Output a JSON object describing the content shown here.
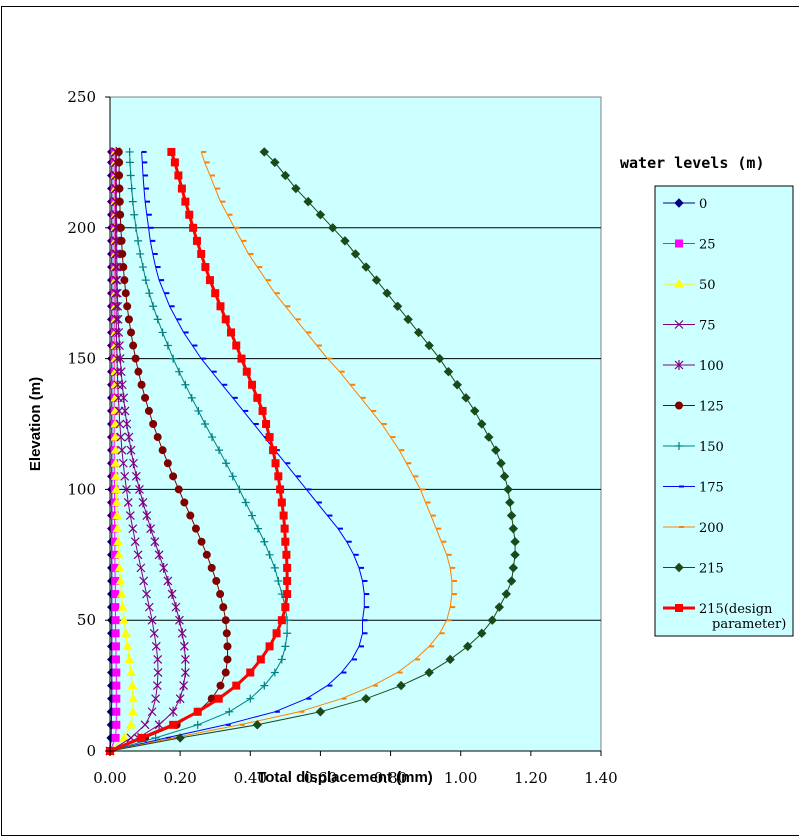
{
  "chart_data": {
    "type": "line",
    "xlabel": "Total displacement (mm)",
    "ylabel": "Elevation (m)",
    "xlim": [
      0,
      1.4
    ],
    "ylim": [
      0,
      250
    ],
    "x_ticks": [
      "0.00",
      "0.20",
      "0.40",
      "0.60",
      "0.80",
      "1.00",
      "1.20",
      "1.40"
    ],
    "y_ticks": [
      "0",
      "50",
      "100",
      "150",
      "200",
      "250"
    ],
    "grid": "horizontal",
    "legend_title": "water levels (m)",
    "legend_position": "right",
    "colors": {
      "plot_background": "#ccffff",
      "legend_background": "#ccffff"
    },
    "elevations": [
      0,
      5,
      10,
      15,
      20,
      25,
      30,
      35,
      40,
      45,
      50,
      55,
      60,
      65,
      70,
      75,
      80,
      85,
      90,
      95,
      100,
      105,
      110,
      115,
      120,
      125,
      130,
      135,
      140,
      145,
      150,
      155,
      160,
      165,
      170,
      175,
      180,
      185,
      190,
      195,
      200,
      205,
      210,
      215,
      220,
      225,
      229
    ],
    "series": [
      {
        "name": "0",
        "color": "#000080",
        "marker": "diamond",
        "width": 1,
        "values": [
          0,
          0.003,
          0.004,
          0.004,
          0.005,
          0.005,
          0.005,
          0.005,
          0.005,
          0.005,
          0.005,
          0.005,
          0.005,
          0.005,
          0.005,
          0.005,
          0.005,
          0.005,
          0.005,
          0.005,
          0.005,
          0.005,
          0.005,
          0.005,
          0.005,
          0.005,
          0.005,
          0.005,
          0.005,
          0.005,
          0.005,
          0.005,
          0.005,
          0.005,
          0.005,
          0.005,
          0.005,
          0.005,
          0.005,
          0.005,
          0.005,
          0.005,
          0.005,
          0.005,
          0.005,
          0.005,
          0.005
        ]
      },
      {
        "name": "25",
        "color": "#ff00ff",
        "marker": "square",
        "width": 1,
        "values": [
          0,
          0.016,
          0.018,
          0.018,
          0.018,
          0.018,
          0.018,
          0.017,
          0.017,
          0.016,
          0.016,
          0.015,
          0.015,
          0.015,
          0.014,
          0.014,
          0.014,
          0.013,
          0.013,
          0.013,
          0.013,
          0.012,
          0.012,
          0.012,
          0.012,
          0.012,
          0.012,
          0.012,
          0.012,
          0.012,
          0.012,
          0.012,
          0.012,
          0.012,
          0.012,
          0.012,
          0.012,
          0.012,
          0.012,
          0.012,
          0.012,
          0.012,
          0.012,
          0.012,
          0.012,
          0.012,
          0.012
        ]
      },
      {
        "name": "50",
        "color": "#ffff00",
        "marker": "triangle",
        "width": 1,
        "values": [
          0,
          0.04,
          0.06,
          0.065,
          0.066,
          0.064,
          0.06,
          0.055,
          0.05,
          0.045,
          0.04,
          0.036,
          0.033,
          0.03,
          0.027,
          0.025,
          0.023,
          0.021,
          0.02,
          0.019,
          0.018,
          0.017,
          0.016,
          0.016,
          0.015,
          0.015,
          0.015,
          0.015,
          0.015,
          0.015,
          0.015,
          0.015,
          0.015,
          0.015,
          0.015,
          0.015,
          0.015,
          0.015,
          0.015,
          0.015,
          0.015,
          0.015,
          0.015,
          0.015,
          0.015,
          0.015,
          0.015
        ]
      },
      {
        "name": "75",
        "color": "#800080",
        "marker": "x",
        "width": 1,
        "values": [
          0,
          0.06,
          0.1,
          0.12,
          0.13,
          0.135,
          0.137,
          0.136,
          0.132,
          0.126,
          0.12,
          0.112,
          0.104,
          0.096,
          0.088,
          0.08,
          0.072,
          0.065,
          0.058,
          0.052,
          0.047,
          0.042,
          0.038,
          0.034,
          0.031,
          0.028,
          0.026,
          0.024,
          0.022,
          0.021,
          0.02,
          0.019,
          0.018,
          0.018,
          0.017,
          0.017,
          0.017,
          0.016,
          0.016,
          0.016,
          0.016,
          0.016,
          0.016,
          0.016,
          0.016,
          0.016,
          0.016
        ]
      },
      {
        "name": "100",
        "color": "#800080",
        "marker": "asterisk",
        "width": 1,
        "values": [
          0,
          0.08,
          0.14,
          0.18,
          0.2,
          0.21,
          0.215,
          0.215,
          0.212,
          0.206,
          0.198,
          0.188,
          0.177,
          0.165,
          0.153,
          0.14,
          0.128,
          0.116,
          0.105,
          0.094,
          0.084,
          0.075,
          0.067,
          0.06,
          0.054,
          0.048,
          0.043,
          0.039,
          0.035,
          0.032,
          0.029,
          0.027,
          0.025,
          0.023,
          0.022,
          0.021,
          0.02,
          0.02,
          0.019,
          0.019,
          0.019,
          0.018,
          0.018,
          0.018,
          0.018,
          0.018,
          0.018
        ]
      },
      {
        "name": "125",
        "color": "#800000",
        "marker": "circle",
        "width": 1,
        "values": [
          0,
          0.1,
          0.19,
          0.25,
          0.29,
          0.315,
          0.33,
          0.335,
          0.335,
          0.333,
          0.33,
          0.323,
          0.314,
          0.303,
          0.29,
          0.276,
          0.261,
          0.245,
          0.229,
          0.212,
          0.196,
          0.18,
          0.165,
          0.15,
          0.136,
          0.123,
          0.111,
          0.1,
          0.09,
          0.081,
          0.073,
          0.066,
          0.06,
          0.054,
          0.049,
          0.045,
          0.041,
          0.038,
          0.035,
          0.033,
          0.031,
          0.029,
          0.028,
          0.027,
          0.026,
          0.026,
          0.025
        ]
      },
      {
        "name": "150",
        "color": "#008080",
        "marker": "plus",
        "width": 1,
        "values": [
          0,
          0.13,
          0.25,
          0.34,
          0.4,
          0.44,
          0.47,
          0.49,
          0.5,
          0.505,
          0.505,
          0.5,
          0.49,
          0.48,
          0.47,
          0.455,
          0.44,
          0.422,
          0.405,
          0.387,
          0.369,
          0.35,
          0.331,
          0.311,
          0.291,
          0.271,
          0.252,
          0.233,
          0.215,
          0.197,
          0.18,
          0.165,
          0.15,
          0.136,
          0.123,
          0.112,
          0.102,
          0.094,
          0.086,
          0.08,
          0.074,
          0.069,
          0.065,
          0.062,
          0.059,
          0.057,
          0.056
        ]
      },
      {
        "name": "175",
        "color": "#0000ff",
        "marker": "dash",
        "width": 1,
        "values": [
          0,
          0.16,
          0.33,
          0.47,
          0.56,
          0.62,
          0.66,
          0.69,
          0.71,
          0.72,
          0.72,
          0.725,
          0.725,
          0.72,
          0.71,
          0.695,
          0.675,
          0.65,
          0.62,
          0.59,
          0.56,
          0.53,
          0.5,
          0.47,
          0.44,
          0.41,
          0.38,
          0.35,
          0.32,
          0.29,
          0.26,
          0.235,
          0.21,
          0.19,
          0.17,
          0.155,
          0.14,
          0.13,
          0.122,
          0.115,
          0.11,
          0.105,
          0.1,
          0.097,
          0.094,
          0.092,
          0.09
        ]
      },
      {
        "name": "200",
        "color": "#ff8000",
        "marker": "dash",
        "width": 1,
        "values": [
          0,
          0.18,
          0.37,
          0.54,
          0.66,
          0.75,
          0.82,
          0.87,
          0.91,
          0.94,
          0.96,
          0.97,
          0.975,
          0.975,
          0.97,
          0.96,
          0.945,
          0.93,
          0.915,
          0.9,
          0.885,
          0.865,
          0.845,
          0.825,
          0.8,
          0.775,
          0.745,
          0.715,
          0.685,
          0.655,
          0.62,
          0.59,
          0.56,
          0.53,
          0.5,
          0.47,
          0.445,
          0.42,
          0.395,
          0.375,
          0.355,
          0.335,
          0.315,
          0.3,
          0.285,
          0.27,
          0.26
        ]
      },
      {
        "name": "215",
        "color": "#1a4a1a",
        "marker": "diamond",
        "width": 1,
        "values": [
          0,
          0.2,
          0.42,
          0.6,
          0.73,
          0.83,
          0.91,
          0.97,
          1.02,
          1.06,
          1.09,
          1.11,
          1.13,
          1.145,
          1.15,
          1.155,
          1.155,
          1.15,
          1.145,
          1.14,
          1.135,
          1.125,
          1.115,
          1.1,
          1.08,
          1.06,
          1.04,
          1.015,
          0.99,
          0.965,
          0.94,
          0.91,
          0.88,
          0.85,
          0.82,
          0.79,
          0.76,
          0.73,
          0.7,
          0.67,
          0.635,
          0.6,
          0.565,
          0.53,
          0.5,
          0.47,
          0.44
        ]
      },
      {
        "name": "215(design parameter)",
        "color": "#ff0000",
        "marker": "square",
        "width": 3,
        "values": [
          0,
          0.09,
          0.18,
          0.25,
          0.31,
          0.36,
          0.4,
          0.43,
          0.455,
          0.475,
          0.49,
          0.5,
          0.505,
          0.505,
          0.505,
          0.503,
          0.5,
          0.498,
          0.495,
          0.49,
          0.485,
          0.48,
          0.472,
          0.465,
          0.455,
          0.445,
          0.435,
          0.42,
          0.405,
          0.39,
          0.375,
          0.36,
          0.345,
          0.33,
          0.315,
          0.3,
          0.285,
          0.272,
          0.26,
          0.248,
          0.237,
          0.226,
          0.215,
          0.205,
          0.195,
          0.185,
          0.175
        ]
      }
    ]
  }
}
